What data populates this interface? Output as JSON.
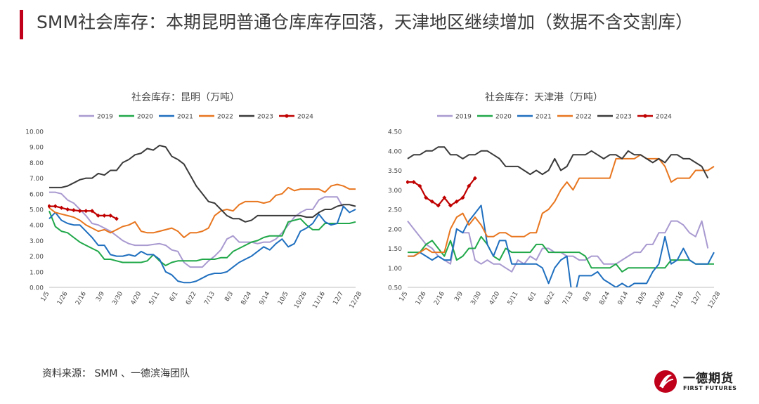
{
  "page": {
    "title": "SMM社会库存：本期昆明普通仓库库存回落，天津地区继续增加（数据不含交割库）",
    "source": "资料来源： SMM 、一德滨海团队",
    "logo_zh": "一德期货",
    "logo_en": "FIRST FUTURES"
  },
  "colors": {
    "2019": "#a99ad0",
    "2020": "#21a84a",
    "2021": "#1f6fbf",
    "2022": "#e8761f",
    "2023": "#3a3a3a",
    "2024": "#c00000",
    "accent": "#c0001b"
  },
  "chart_data": [
    {
      "type": "line",
      "title": "社会库存：昆明（万吨）",
      "ylim": [
        0,
        10
      ],
      "yticks": [
        "0.00",
        "1.00",
        "2.00",
        "3.00",
        "4.00",
        "5.00",
        "6.00",
        "7.00",
        "8.00",
        "9.00",
        "10.00"
      ],
      "xticks": [
        "1/5",
        "1/26",
        "2/16",
        "3/9",
        "3/30",
        "4/20",
        "5/11",
        "6/1",
        "6/22",
        "7/13",
        "8/3",
        "8/24",
        "9/14",
        "10/5",
        "10/26",
        "11/16",
        "12/7",
        "12/28"
      ],
      "legend_position": "top",
      "series": [
        {
          "name": "2019",
          "values": [
            6.1,
            6.1,
            6.0,
            5.6,
            5.4,
            5.0,
            4.6,
            4.1,
            4.0,
            3.8,
            3.6,
            3.3,
            3.0,
            2.8,
            2.7,
            2.7,
            2.7,
            2.75,
            2.8,
            2.7,
            2.4,
            2.3,
            1.6,
            1.3,
            1.3,
            1.3,
            1.7,
            2.0,
            2.4,
            3.1,
            3.3,
            2.9,
            2.9,
            2.9,
            2.8,
            2.9,
            2.9,
            3.1,
            3.5,
            4.0,
            4.5,
            4.8,
            5.0,
            5.0,
            5.6,
            5.8,
            5.8,
            5.8,
            5.1,
            null,
            null
          ]
        },
        {
          "name": "2020",
          "values": [
            4.9,
            3.9,
            3.6,
            3.5,
            3.2,
            2.9,
            2.7,
            2.5,
            2.3,
            1.8,
            1.8,
            1.7,
            1.6,
            1.6,
            1.6,
            1.6,
            1.7,
            2.1,
            1.7,
            1.4,
            1.6,
            1.7,
            1.7,
            1.7,
            1.7,
            1.8,
            1.8,
            1.8,
            1.9,
            1.9,
            2.3,
            2.5,
            2.7,
            2.9,
            3.0,
            3.2,
            3.3,
            3.3,
            3.3,
            4.2,
            4.3,
            4.4,
            4.0,
            3.7,
            3.7,
            4.1,
            4.1,
            4.1,
            4.1,
            4.1,
            4.2
          ]
        },
        {
          "name": "2021",
          "values": [
            4.4,
            4.8,
            4.3,
            4.1,
            4.0,
            4.0,
            3.6,
            3.2,
            2.7,
            2.7,
            2.1,
            2.0,
            2.0,
            2.1,
            2.0,
            2.3,
            2.1,
            2.1,
            1.8,
            1.0,
            0.8,
            0.4,
            0.3,
            0.3,
            0.4,
            0.6,
            0.8,
            0.9,
            0.9,
            1.0,
            1.3,
            1.6,
            1.8,
            2.0,
            2.3,
            2.6,
            2.4,
            2.8,
            3.1,
            2.6,
            2.8,
            3.6,
            3.8,
            4.1,
            4.7,
            4.2,
            4.0,
            4.1,
            5.2,
            4.8,
            5.0
          ]
        },
        {
          "name": "2022",
          "values": [
            5.1,
            4.8,
            4.7,
            4.6,
            4.5,
            4.3,
            4.0,
            3.8,
            3.6,
            3.7,
            3.5,
            3.7,
            3.9,
            4.0,
            4.2,
            3.6,
            3.5,
            3.5,
            3.6,
            3.7,
            3.8,
            3.6,
            3.2,
            3.5,
            3.5,
            3.6,
            3.8,
            4.6,
            4.9,
            5.0,
            4.9,
            5.3,
            5.5,
            5.5,
            5.5,
            5.4,
            5.5,
            5.9,
            6.0,
            6.4,
            6.2,
            6.3,
            6.3,
            6.3,
            6.3,
            6.1,
            6.5,
            6.6,
            6.5,
            6.3,
            6.3
          ]
        },
        {
          "name": "2023",
          "values": [
            6.4,
            6.4,
            6.4,
            6.5,
            6.7,
            6.9,
            7.0,
            7.0,
            7.3,
            7.2,
            7.5,
            7.5,
            8.0,
            8.2,
            8.5,
            8.6,
            8.9,
            8.8,
            9.1,
            9.0,
            8.4,
            8.2,
            7.9,
            7.2,
            6.5,
            6.0,
            5.5,
            5.4,
            5.0,
            4.6,
            4.4,
            4.4,
            4.2,
            4.3,
            4.6,
            4.6,
            4.6,
            4.6,
            4.6,
            4.6,
            4.6,
            4.6,
            4.5,
            4.5,
            4.8,
            5.0,
            5.0,
            5.2,
            5.3,
            5.3,
            5.2
          ]
        },
        {
          "name": "2024",
          "values": [
            5.2,
            5.2,
            5.1,
            5.0,
            4.95,
            4.9,
            4.9,
            4.9,
            4.6,
            4.6,
            4.6,
            4.4
          ]
        }
      ]
    },
    {
      "type": "line",
      "title": "社会库存：天津港（万吨）",
      "ylim": [
        0.5,
        4.5
      ],
      "yticks": [
        "0.50",
        "1.00",
        "1.50",
        "2.00",
        "2.50",
        "3.00",
        "3.50",
        "4.00",
        "4.50"
      ],
      "xticks": [
        "1/5",
        "1/26",
        "2/16",
        "3/9",
        "3/30",
        "4/20",
        "5/11",
        "6/1",
        "6/22",
        "7/13",
        "8/3",
        "8/24",
        "9/14",
        "10/5",
        "10/26",
        "11/16",
        "12/7",
        "12/28"
      ],
      "legend_position": "top",
      "series": [
        {
          "name": "2019",
          "values": [
            2.2,
            2.0,
            1.8,
            1.6,
            1.5,
            1.3,
            1.2,
            1.1,
            2.0,
            1.9,
            1.9,
            1.2,
            1.1,
            1.2,
            1.1,
            1.1,
            1.0,
            0.9,
            1.2,
            1.1,
            1.3,
            1.2,
            1.5,
            1.5,
            1.4,
            1.4,
            1.3,
            1.3,
            1.2,
            1.2,
            1.3,
            1.3,
            1.1,
            1.1,
            1.1,
            1.2,
            1.3,
            1.4,
            1.4,
            1.6,
            1.6,
            1.9,
            1.9,
            2.2,
            2.2,
            2.1,
            1.9,
            1.8,
            2.2,
            1.5,
            null
          ]
        },
        {
          "name": "2020",
          "values": [
            1.4,
            1.4,
            1.4,
            1.6,
            1.7,
            1.5,
            1.3,
            1.7,
            1.2,
            1.3,
            1.5,
            1.5,
            1.8,
            1.6,
            1.3,
            1.2,
            1.5,
            1.4,
            1.4,
            1.4,
            1.4,
            1.6,
            1.6,
            1.4,
            1.4,
            1.4,
            1.4,
            1.4,
            1.4,
            1.3,
            1.0,
            1.0,
            1.0,
            1.0,
            1.1,
            0.9,
            1.0,
            1.0,
            1.0,
            1.0,
            1.0,
            1.0,
            1.0,
            1.2,
            1.2,
            1.2,
            1.2,
            1.1,
            1.1,
            1.1,
            1.1
          ]
        },
        {
          "name": "2021",
          "values": [
            1.3,
            1.3,
            1.4,
            1.3,
            1.2,
            1.3,
            1.2,
            1.2,
            2.0,
            1.9,
            2.2,
            2.4,
            2.6,
            1.6,
            1.3,
            1.7,
            1.7,
            1.1,
            1.1,
            1.1,
            1.1,
            1.1,
            1.0,
            0.6,
            1.0,
            1.2,
            1.3,
            0.1,
            0.8,
            0.8,
            0.8,
            0.9,
            0.7,
            0.6,
            0.5,
            0.6,
            0.5,
            0.6,
            0.6,
            0.6,
            0.9,
            1.1,
            1.8,
            1.1,
            1.2,
            1.5,
            1.2,
            1.1,
            1.1,
            1.1,
            1.4
          ]
        },
        {
          "name": "2022",
          "values": [
            1.3,
            1.3,
            1.4,
            1.5,
            1.4,
            1.4,
            1.4,
            2.0,
            2.3,
            2.4,
            2.1,
            2.3,
            2.1,
            1.8,
            1.8,
            1.9,
            1.9,
            1.8,
            1.8,
            1.8,
            1.9,
            1.9,
            2.4,
            2.5,
            2.7,
            3.0,
            3.2,
            3.0,
            3.3,
            3.3,
            3.3,
            3.3,
            3.3,
            3.3,
            3.8,
            3.8,
            3.8,
            3.8,
            3.9,
            3.8,
            3.8,
            3.8,
            3.6,
            3.2,
            3.3,
            3.3,
            3.3,
            3.5,
            3.5,
            3.5,
            3.6
          ]
        },
        {
          "name": "2023",
          "values": [
            3.8,
            3.9,
            3.9,
            4.0,
            4.0,
            4.1,
            4.1,
            3.9,
            3.9,
            3.8,
            3.9,
            3.9,
            4.0,
            4.0,
            3.9,
            3.8,
            3.6,
            3.6,
            3.6,
            3.5,
            3.4,
            3.5,
            3.4,
            3.5,
            3.8,
            3.5,
            3.6,
            3.9,
            3.9,
            3.9,
            4.0,
            3.9,
            3.8,
            3.9,
            3.9,
            3.8,
            4.0,
            3.9,
            3.9,
            3.8,
            3.7,
            3.8,
            3.7,
            3.9,
            3.9,
            3.8,
            3.8,
            3.7,
            3.6,
            3.3,
            null
          ]
        },
        {
          "name": "2024",
          "values": [
            3.2,
            3.2,
            3.1,
            2.8,
            2.7,
            2.6,
            2.8,
            2.6,
            2.7,
            2.8,
            3.1,
            3.3
          ]
        }
      ]
    }
  ]
}
